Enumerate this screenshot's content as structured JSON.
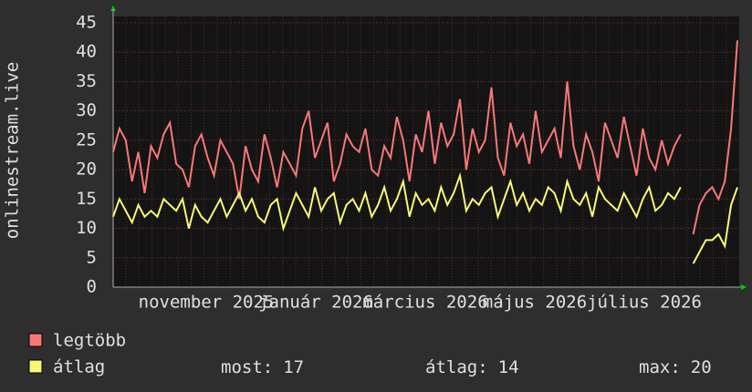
{
  "chart_data": {
    "type": "line",
    "y_label": "onlinestream.live",
    "ylim": [
      0,
      45
    ],
    "yticks": [
      0,
      5,
      10,
      15,
      20,
      25,
      30,
      35,
      40,
      45
    ],
    "grid": true,
    "xtick_labels": [
      "november 2025",
      "január 2026",
      "március 2026",
      "május 2026",
      "július 2026"
    ],
    "series": [
      {
        "name": "legtöbb",
        "color": "#f87878",
        "values": [
          23,
          27,
          25,
          18,
          23,
          16,
          24,
          22,
          26,
          28,
          21,
          20,
          17,
          24,
          26,
          22,
          19,
          25,
          23,
          21,
          15,
          24,
          20,
          18,
          26,
          22,
          17,
          23,
          21,
          19,
          27,
          30,
          22,
          25,
          28,
          18,
          21,
          26,
          24,
          23,
          27,
          20,
          19,
          24,
          22,
          29,
          25,
          18,
          26,
          23,
          30,
          21,
          28,
          24,
          26,
          32,
          20,
          27,
          23,
          25,
          34,
          22,
          19,
          28,
          24,
          26,
          21,
          30,
          23,
          25,
          27,
          22,
          35,
          24,
          20,
          26,
          23,
          18,
          28,
          25,
          22,
          29,
          24,
          19,
          27,
          22,
          20,
          25,
          21,
          24,
          26,
          null,
          9,
          14,
          16,
          17,
          15,
          18,
          27,
          42
        ]
      },
      {
        "name": "átlag",
        "color": "#f8f878",
        "values": [
          12,
          15,
          13,
          11,
          14,
          12,
          13,
          12,
          15,
          14,
          13,
          15,
          10,
          14,
          12,
          11,
          13,
          15,
          12,
          14,
          16,
          13,
          15,
          12,
          11,
          14,
          15,
          10,
          13,
          16,
          14,
          12,
          17,
          13,
          15,
          16,
          11,
          14,
          15,
          13,
          16,
          12,
          14,
          17,
          13,
          15,
          18,
          12,
          16,
          14,
          15,
          13,
          17,
          14,
          16,
          19,
          13,
          15,
          14,
          16,
          17,
          12,
          15,
          18,
          14,
          16,
          13,
          15,
          14,
          17,
          16,
          13,
          18,
          15,
          14,
          16,
          12,
          17,
          15,
          14,
          13,
          16,
          14,
          12,
          15,
          17,
          13,
          14,
          16,
          15,
          17,
          null,
          4,
          6,
          8,
          8,
          9,
          7,
          14,
          17
        ]
      }
    ],
    "stats": [
      {
        "label": "most:",
        "value": 17
      },
      {
        "label": "átlag:",
        "value": 14
      },
      {
        "label": "max:",
        "value": 20
      }
    ]
  }
}
